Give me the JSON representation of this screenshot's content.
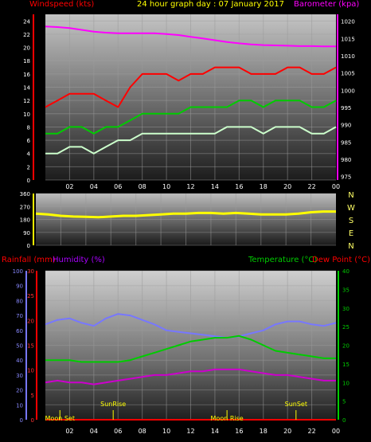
{
  "header": {
    "left": "Windspeed (kts)",
    "center": "24 hour graph day : 07 January 2017",
    "right": "Barometer (kpa)"
  },
  "panel3_labels": {
    "rain": "Rainfall (mm)",
    "humidity": "Humidity (%)",
    "temperature": "Temperature (°C)",
    "dewpoint": "Dew Point (°C)"
  },
  "compass": [
    "N",
    "W",
    "S",
    "E",
    "N"
  ],
  "x_ticks": [
    "02",
    "04",
    "06",
    "08",
    "10",
    "12",
    "14",
    "16",
    "18",
    "20",
    "22",
    "00"
  ],
  "events": [
    {
      "label": "Moon Set",
      "hour": 1.2
    },
    {
      "label": "SunRise",
      "hour": 5.6
    },
    {
      "label": "Moon Rise",
      "hour": 15.0
    },
    {
      "label": "SunSet",
      "hour": 20.7
    }
  ],
  "colors": {
    "wind_gust": "#ff0000",
    "wind_avg": "#00cc00",
    "wind_speed": "#ccffcc",
    "barometer": "#ff00ff",
    "direction": "#ffff00",
    "rain": "#ff0000",
    "humidity": "#7777ff",
    "temperature": "#00cc00",
    "dewpoint": "#cc00cc",
    "label_red": "#ff0000",
    "label_purple": "#aa00ff",
    "label_green": "#00cc00",
    "label_yellow": "#ffff00"
  },
  "chart_data": [
    {
      "type": "line",
      "title": "24 hour graph day : 07 January 2017",
      "xlabel": "",
      "ylabel": "Windspeed (kts)",
      "ylim": [
        0,
        25
      ],
      "y_ticks": [
        0,
        2,
        4,
        6,
        8,
        10,
        12,
        14,
        16,
        18,
        20,
        22,
        24
      ],
      "y2label": "Barometer (kpa)",
      "y2lim": [
        974,
        1022
      ],
      "y2_ticks": [
        975,
        980,
        985,
        990,
        995,
        1000,
        1005,
        1010,
        1015,
        1020
      ],
      "x": [
        0,
        1,
        2,
        3,
        4,
        5,
        6,
        7,
        8,
        9,
        10,
        11,
        12,
        13,
        14,
        15,
        16,
        17,
        18,
        19,
        20,
        21,
        22,
        23,
        24
      ],
      "series": [
        {
          "name": "gust",
          "values": [
            11,
            12,
            13,
            13,
            13,
            12,
            11,
            14,
            16,
            16,
            16,
            15,
            16,
            16,
            17,
            17,
            17,
            16,
            16,
            16,
            17,
            17,
            16,
            16,
            17
          ]
        },
        {
          "name": "average",
          "values": [
            7,
            7,
            8,
            8,
            7,
            8,
            8,
            9,
            10,
            10,
            10,
            10,
            11,
            11,
            11,
            11,
            12,
            12,
            11,
            12,
            12,
            12,
            11,
            11,
            12
          ]
        },
        {
          "name": "speed",
          "values": [
            4,
            4,
            5,
            5,
            4,
            5,
            6,
            6,
            7,
            7,
            7,
            7,
            7,
            7,
            7,
            8,
            8,
            8,
            7,
            8,
            8,
            8,
            7,
            7,
            8
          ]
        },
        {
          "name": "barometer",
          "values": [
            1018.5,
            1018.3,
            1018,
            1017.5,
            1017,
            1016.7,
            1016.5,
            1016.5,
            1016.5,
            1016.5,
            1016.3,
            1016,
            1015.5,
            1015,
            1014.5,
            1014,
            1013.6,
            1013.3,
            1013.1,
            1013,
            1012.9,
            1012.8,
            1012.8,
            1012.7,
            1012.7
          ]
        }
      ]
    },
    {
      "type": "line",
      "ylim": [
        0,
        360
      ],
      "y_ticks": [
        0,
        90,
        180,
        270,
        360
      ],
      "x": [
        0,
        1,
        2,
        3,
        4,
        5,
        6,
        7,
        8,
        9,
        10,
        11,
        12,
        13,
        14,
        15,
        16,
        17,
        18,
        19,
        20,
        21,
        22,
        23,
        24
      ],
      "series": [
        {
          "name": "direction",
          "values": [
            220,
            215,
            205,
            200,
            198,
            195,
            200,
            205,
            205,
            210,
            215,
            220,
            220,
            225,
            225,
            220,
            225,
            220,
            215,
            215,
            215,
            220,
            230,
            235,
            235
          ]
        }
      ]
    },
    {
      "type": "line",
      "ylim": [
        0,
        100
      ],
      "y_ticks": [
        0,
        10,
        20,
        30,
        40,
        50,
        60,
        70,
        80,
        90,
        100
      ],
      "rain_ylim": [
        0,
        30
      ],
      "rain_ticks": [
        0,
        5,
        10,
        15,
        20,
        25,
        30
      ],
      "temp_ylim": [
        0,
        40
      ],
      "temp_ticks": [
        0,
        5,
        10,
        15,
        20,
        25,
        30,
        35,
        40
      ],
      "x": [
        0,
        1,
        2,
        3,
        4,
        5,
        6,
        7,
        8,
        9,
        10,
        11,
        12,
        13,
        14,
        15,
        16,
        17,
        18,
        19,
        20,
        21,
        22,
        23,
        24
      ],
      "series": [
        {
          "name": "humidity",
          "values": [
            64,
            67,
            68,
            65,
            63,
            68,
            71,
            70,
            67,
            64,
            60,
            59,
            58,
            57,
            56,
            55,
            56,
            58,
            60,
            64,
            66,
            66,
            64,
            63,
            65
          ]
        },
        {
          "name": "temperature",
          "values": [
            16,
            16,
            16,
            15.5,
            15.5,
            15.5,
            15.5,
            16,
            17,
            18,
            19,
            20,
            21,
            21.5,
            22,
            22,
            22.5,
            21.5,
            20,
            18.5,
            18,
            17.5,
            17,
            16.5,
            16.5
          ]
        },
        {
          "name": "dewpoint",
          "values": [
            10,
            10.5,
            10,
            10,
            9.5,
            10,
            10.5,
            11,
            11.5,
            12,
            12,
            12.5,
            13,
            13,
            13.5,
            13.5,
            13.5,
            13,
            12.5,
            12,
            12,
            11.5,
            11,
            10.5,
            10.5
          ]
        },
        {
          "name": "rain",
          "values": [
            0,
            0,
            0,
            0,
            0,
            0,
            0,
            0,
            0,
            0,
            0,
            0,
            0,
            0,
            0,
            0,
            0,
            0,
            0,
            0,
            0,
            0,
            0,
            0,
            0
          ]
        }
      ]
    }
  ]
}
